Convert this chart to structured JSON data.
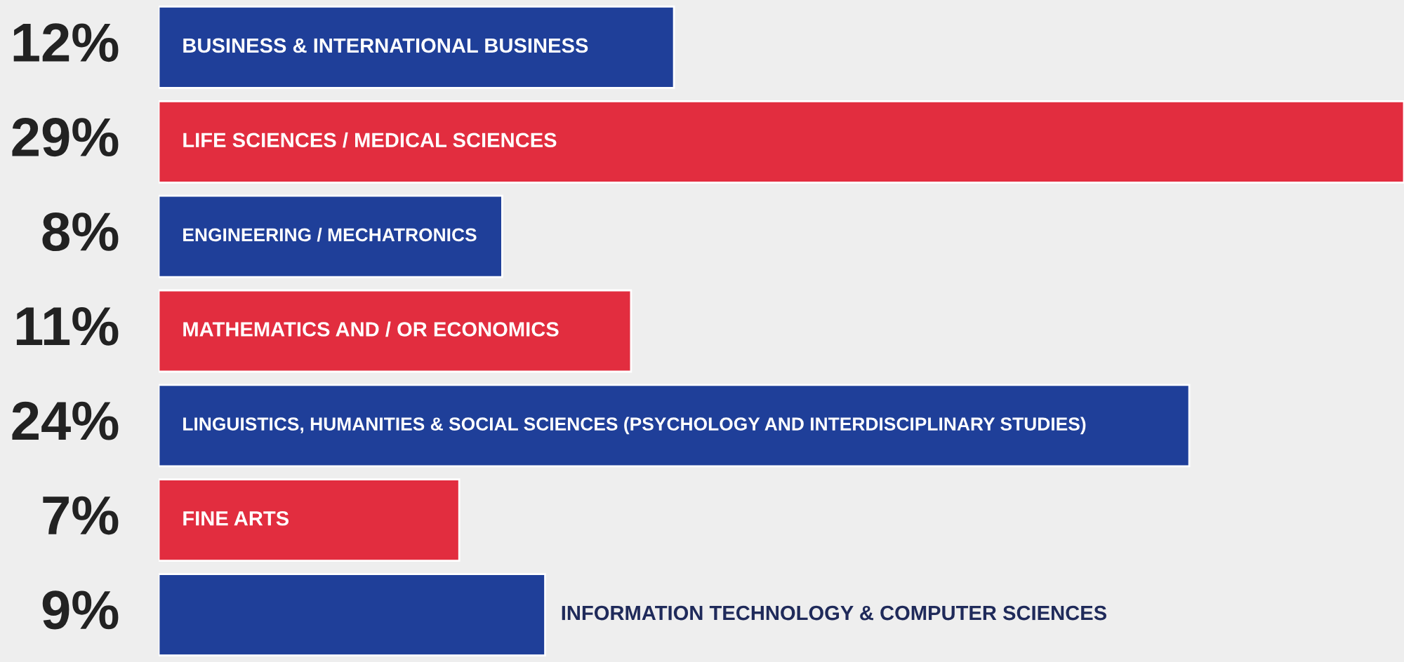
{
  "chart_data": {
    "type": "bar",
    "orientation": "horizontal",
    "categories": [
      "BUSINESS & INTERNATIONAL BUSINESS",
      "LIFE SCIENCES / MEDICAL SCIENCES",
      "ENGINEERING / MECHATRONICS",
      "MATHEMATICS AND / OR ECONOMICS",
      "LINGUISTICS, HUMANITIES & SOCIAL SCIENCES (PSYCHOLOGY AND INTERDISCIPLINARY STUDIES)",
      "FINE ARTS",
      "INFORMATION TECHNOLOGY & COMPUTER SCIENCES"
    ],
    "values": [
      12,
      29,
      8,
      11,
      24,
      7,
      9
    ],
    "colors": [
      "#1f3f99",
      "#e22d3f",
      "#1f3f99",
      "#e22d3f",
      "#1f3f99",
      "#e22d3f",
      "#1f3f99"
    ],
    "value_labels": [
      "12%",
      "29%",
      "8%",
      "11%",
      "24%",
      "7%",
      "9%"
    ]
  }
}
